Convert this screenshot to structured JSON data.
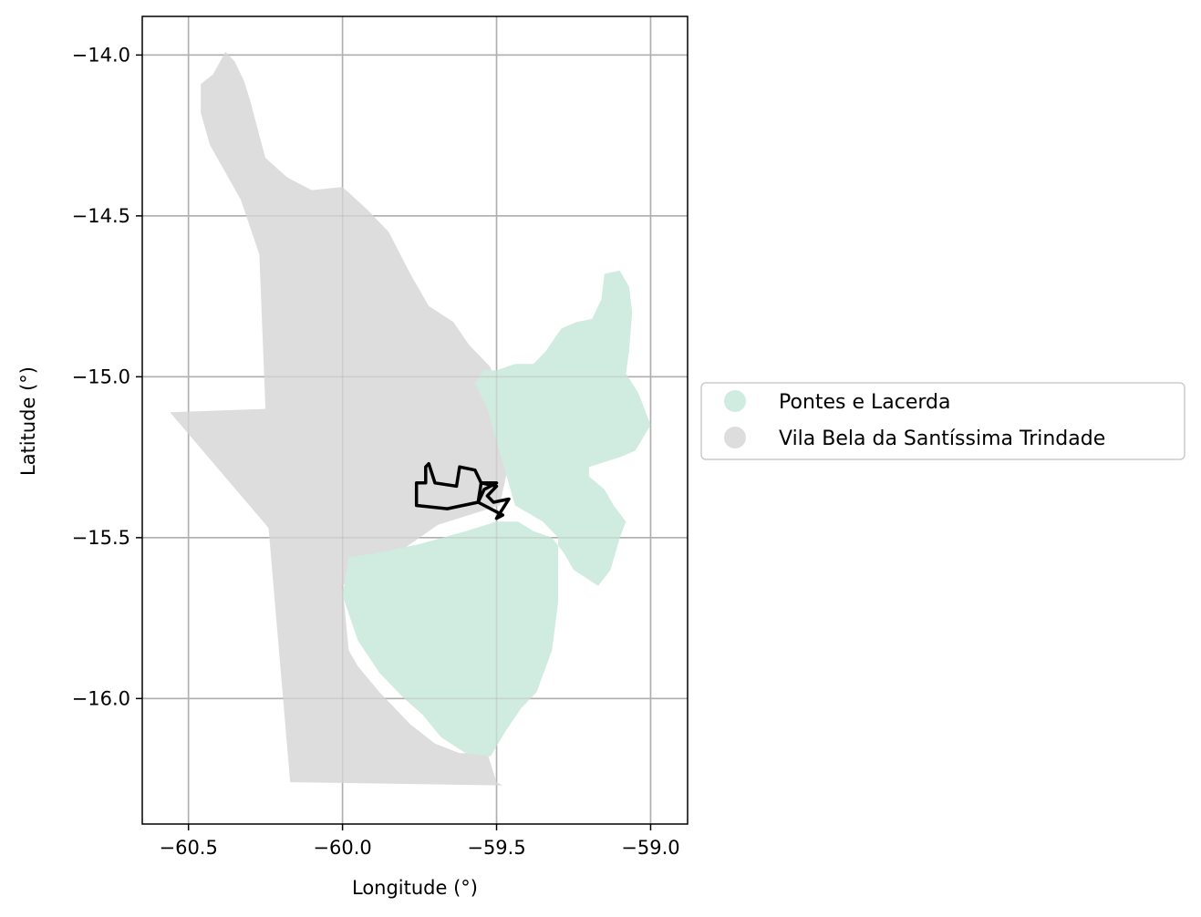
{
  "chart_data": {
    "type": "map",
    "xlabel": "Longitude (°)",
    "ylabel": "Latitude (°)",
    "xlim": [
      -60.65,
      -58.88
    ],
    "ylim": [
      -16.39,
      -13.88
    ],
    "x_ticks": [
      {
        "value": -60.5,
        "label": "−60.5"
      },
      {
        "value": -60.0,
        "label": "−60.0"
      },
      {
        "value": -59.5,
        "label": "−59.5"
      },
      {
        "value": -59.0,
        "label": "−59.0"
      }
    ],
    "y_ticks": [
      {
        "value": -14.0,
        "label": "−14.0"
      },
      {
        "value": -14.5,
        "label": "−14.5"
      },
      {
        "value": -15.0,
        "label": "−15.0"
      },
      {
        "value": -15.5,
        "label": "−15.5"
      },
      {
        "value": -16.0,
        "label": "−16.0"
      }
    ],
    "grid": true,
    "legend": {
      "placement": "right",
      "entries": [
        {
          "label": "Pontes e Lacerda",
          "color": "#d0ebdf"
        },
        {
          "label": "Vila Bela da Santíssima Trindade",
          "color": "#dddddd"
        }
      ]
    },
    "regions": [
      {
        "name": "Vila Bela da Santíssima Trindade",
        "color": "#dddddd",
        "outline": [
          [
            -60.38,
            -13.99
          ],
          [
            -60.35,
            -14.02
          ],
          [
            -60.32,
            -14.08
          ],
          [
            -60.3,
            -14.14
          ],
          [
            -60.27,
            -14.25
          ],
          [
            -60.25,
            -14.32
          ],
          [
            -60.18,
            -14.38
          ],
          [
            -60.1,
            -14.42
          ],
          [
            -60.0,
            -14.41
          ],
          [
            -59.92,
            -14.48
          ],
          [
            -59.85,
            -14.55
          ],
          [
            -59.78,
            -14.68
          ],
          [
            -59.72,
            -14.78
          ],
          [
            -59.64,
            -14.83
          ],
          [
            -59.59,
            -14.9
          ],
          [
            -59.52,
            -14.97
          ],
          [
            -59.48,
            -15.1
          ],
          [
            -59.46,
            -15.27
          ],
          [
            -59.49,
            -15.4
          ],
          [
            -59.69,
            -15.46
          ],
          [
            -59.84,
            -15.56
          ],
          [
            -59.95,
            -15.6
          ],
          [
            -60.0,
            -15.65
          ],
          [
            -59.98,
            -15.85
          ],
          [
            -59.95,
            -15.9
          ],
          [
            -59.88,
            -15.98
          ],
          [
            -59.78,
            -16.08
          ],
          [
            -59.7,
            -16.14
          ],
          [
            -59.62,
            -16.17
          ],
          [
            -59.53,
            -16.17
          ],
          [
            -59.52,
            -16.2
          ],
          [
            -59.5,
            -16.26
          ],
          [
            -59.48,
            -16.27
          ],
          [
            -60.17,
            -16.26
          ],
          [
            -60.24,
            -15.47
          ],
          [
            -60.56,
            -15.11
          ],
          [
            -60.25,
            -15.1
          ],
          [
            -60.27,
            -14.62
          ],
          [
            -60.33,
            -14.45
          ],
          [
            -60.43,
            -14.28
          ],
          [
            -60.46,
            -14.18
          ],
          [
            -60.46,
            -14.09
          ],
          [
            -60.42,
            -14.06
          ]
        ]
      },
      {
        "name": "Pontes e Lacerda",
        "color": "#d0ebdf",
        "outline": [
          [
            -59.1,
            -14.67
          ],
          [
            -59.15,
            -14.68
          ],
          [
            -59.16,
            -14.76
          ],
          [
            -59.19,
            -14.82
          ],
          [
            -59.24,
            -14.83
          ],
          [
            -59.29,
            -14.85
          ],
          [
            -59.34,
            -14.92
          ],
          [
            -59.38,
            -14.96
          ],
          [
            -59.44,
            -14.96
          ],
          [
            -59.5,
            -14.98
          ],
          [
            -59.54,
            -14.98
          ],
          [
            -59.57,
            -15.02
          ],
          [
            -59.53,
            -15.1
          ],
          [
            -59.5,
            -15.2
          ],
          [
            -59.47,
            -15.3
          ],
          [
            -59.44,
            -15.4
          ],
          [
            -59.35,
            -15.45
          ],
          [
            -59.3,
            -15.5
          ],
          [
            -59.3,
            -15.7
          ],
          [
            -59.32,
            -15.85
          ],
          [
            -59.37,
            -15.98
          ],
          [
            -59.42,
            -16.03
          ],
          [
            -59.47,
            -16.1
          ],
          [
            -59.52,
            -16.18
          ],
          [
            -59.6,
            -16.17
          ],
          [
            -59.68,
            -16.12
          ],
          [
            -59.74,
            -16.05
          ],
          [
            -59.8,
            -16.0
          ],
          [
            -59.88,
            -15.92
          ],
          [
            -59.95,
            -15.82
          ],
          [
            -60.0,
            -15.68
          ],
          [
            -59.98,
            -15.56
          ],
          [
            -59.9,
            -15.55
          ],
          [
            -59.75,
            -15.52
          ],
          [
            -59.6,
            -15.48
          ],
          [
            -59.5,
            -15.45
          ],
          [
            -59.43,
            -15.45
          ],
          [
            -59.38,
            -15.48
          ],
          [
            -59.32,
            -15.5
          ],
          [
            -59.28,
            -15.55
          ],
          [
            -59.25,
            -15.6
          ],
          [
            -59.17,
            -15.65
          ],
          [
            -59.13,
            -15.6
          ],
          [
            -59.1,
            -15.5
          ],
          [
            -59.08,
            -15.45
          ],
          [
            -59.12,
            -15.4
          ],
          [
            -59.15,
            -15.35
          ],
          [
            -59.2,
            -15.31
          ],
          [
            -59.2,
            -15.28
          ],
          [
            -59.1,
            -15.25
          ],
          [
            -59.05,
            -15.23
          ],
          [
            -59.0,
            -15.15
          ],
          [
            -59.04,
            -15.05
          ],
          [
            -59.08,
            -14.99
          ],
          [
            -59.07,
            -14.92
          ],
          [
            -59.06,
            -14.8
          ],
          [
            -59.07,
            -14.72
          ]
        ]
      }
    ],
    "highlight_outline": {
      "color": "#000000",
      "outline": [
        [
          -59.72,
          -15.27
        ],
        [
          -59.7,
          -15.33
        ],
        [
          -59.63,
          -15.34
        ],
        [
          -59.62,
          -15.28
        ],
        [
          -59.57,
          -15.29
        ],
        [
          -59.55,
          -15.33
        ],
        [
          -59.5,
          -15.34
        ],
        [
          -59.53,
          -15.37
        ],
        [
          -59.51,
          -15.39
        ],
        [
          -59.46,
          -15.38
        ],
        [
          -59.48,
          -15.41
        ],
        [
          -59.5,
          -15.44
        ],
        [
          -59.48,
          -15.43
        ],
        [
          -59.52,
          -15.41
        ],
        [
          -59.56,
          -15.39
        ],
        [
          -59.54,
          -15.35
        ],
        [
          -59.5,
          -15.33
        ],
        [
          -59.55,
          -15.33
        ],
        [
          -59.56,
          -15.39
        ],
        [
          -59.66,
          -15.41
        ],
        [
          -59.76,
          -15.4
        ],
        [
          -59.76,
          -15.33
        ],
        [
          -59.73,
          -15.33
        ],
        [
          -59.73,
          -15.28
        ]
      ]
    }
  }
}
